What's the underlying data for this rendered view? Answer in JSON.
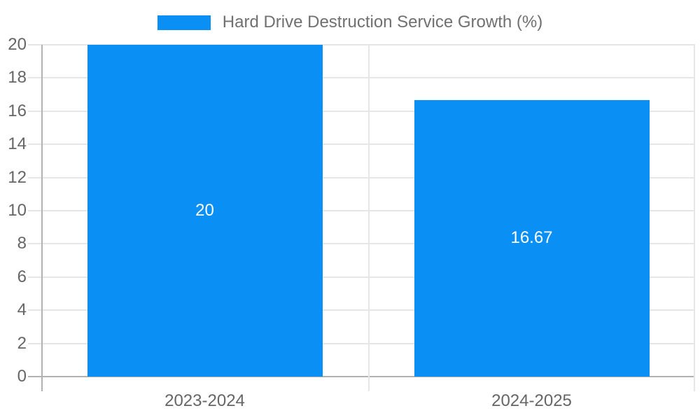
{
  "chart_data": {
    "type": "bar",
    "legend": "Hard Drive Destruction Service Growth (%)",
    "legend_position": "top",
    "categories": [
      "2023-2024",
      "2024-2025"
    ],
    "series": [
      {
        "name": "Hard Drive Destruction Service Growth (%)",
        "values": [
          20,
          16.67
        ]
      }
    ],
    "bar_labels": [
      "20",
      "16.67"
    ],
    "y_ticks": [
      0,
      2,
      4,
      6,
      8,
      10,
      12,
      14,
      16,
      18,
      20
    ],
    "ylim": [
      0,
      20
    ],
    "xlabel": "",
    "ylabel": "",
    "grid": true,
    "colors": {
      "bar": "#0a8ff5",
      "grid": "#e6e6e6",
      "axis": "#b2b2b2",
      "tick_text": "#666666",
      "legend_text": "#707070",
      "bar_label_text": "#ffffff",
      "background": "#ffffff"
    }
  }
}
